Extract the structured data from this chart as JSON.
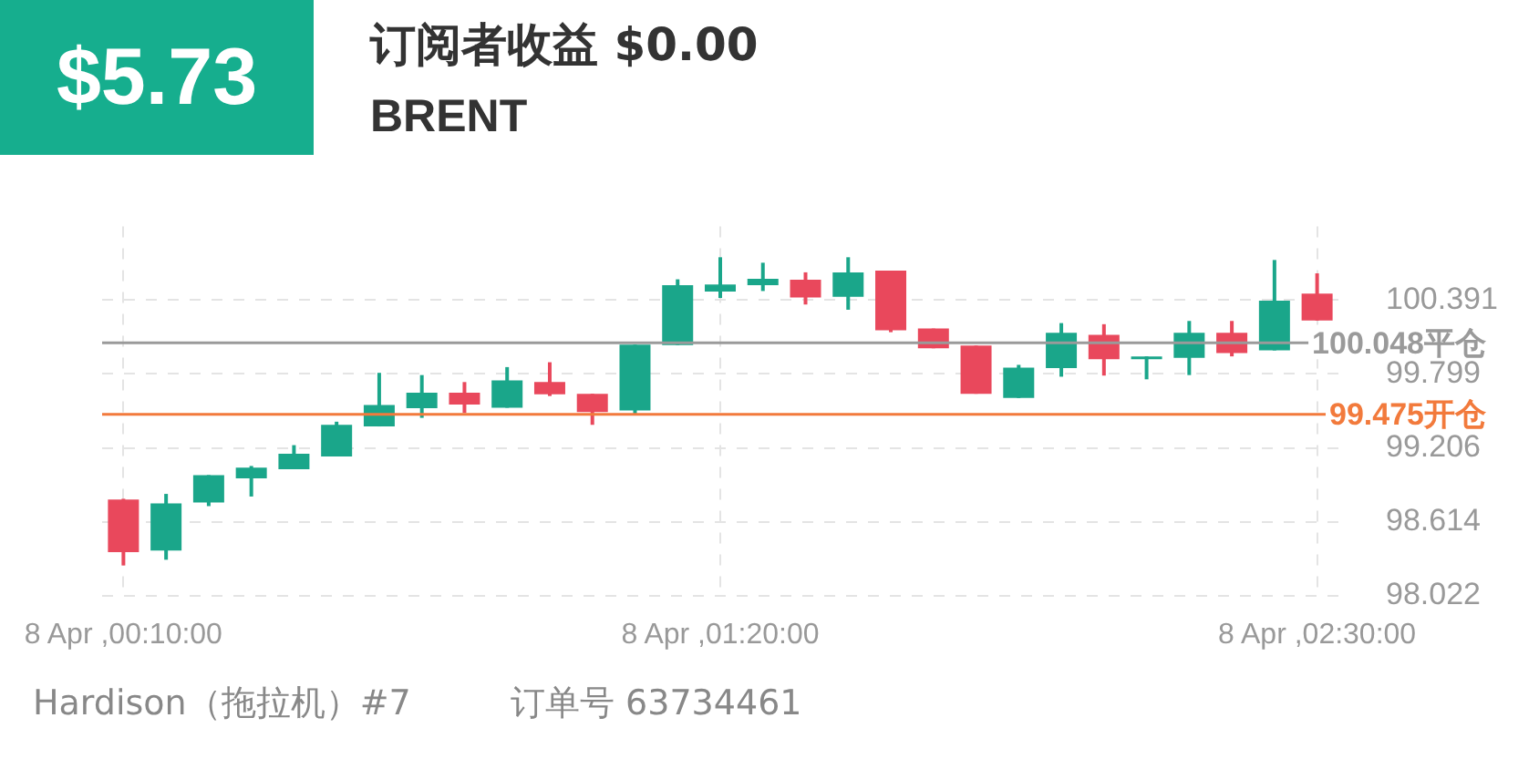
{
  "chart_data": {
    "type": "candlestick",
    "title": "订阅者收益 $0.00",
    "subtitle": "BRENT",
    "annotations": [
      "$5.73",
      "Hardison（拖拉机）#7",
      "订单号 63734461"
    ],
    "categories": [
      "8 Apr ,00:10:00",
      null,
      null,
      null,
      null,
      null,
      null,
      null,
      null,
      null,
      null,
      null,
      null,
      null,
      "8 Apr ,01:20:00",
      null,
      null,
      null,
      null,
      null,
      null,
      null,
      null,
      null,
      null,
      null,
      null,
      null,
      "8 Apr ,02:30:00"
    ],
    "ohlc": [
      [
        98.791,
        98.798,
        98.263,
        98.37
      ],
      [
        98.383,
        98.837,
        98.309,
        98.76
      ],
      [
        98.769,
        98.988,
        98.739,
        98.988
      ],
      [
        98.962,
        99.061,
        98.816,
        99.048
      ],
      [
        99.035,
        99.228,
        99.035,
        99.159
      ],
      [
        99.138,
        99.416,
        99.138,
        99.391
      ],
      [
        99.378,
        99.808,
        99.378,
        99.55
      ],
      [
        99.525,
        99.79,
        99.447,
        99.648
      ],
      [
        99.648,
        99.734,
        99.486,
        99.554
      ],
      [
        99.528,
        99.854,
        99.528,
        99.747
      ],
      [
        99.734,
        99.893,
        99.622,
        99.635
      ],
      [
        99.64,
        99.64,
        99.391,
        99.494
      ],
      [
        99.507,
        100.034,
        99.477,
        100.034
      ],
      [
        100.031,
        100.558,
        100.031,
        100.511
      ],
      [
        100.459,
        100.735,
        100.408,
        100.516
      ],
      [
        100.511,
        100.691,
        100.464,
        100.562
      ],
      [
        100.555,
        100.614,
        100.356,
        100.413
      ],
      [
        100.417,
        100.735,
        100.314,
        100.614
      ],
      [
        100.627,
        100.627,
        100.134,
        100.15
      ],
      [
        100.163,
        100.163,
        100.005,
        100.005
      ],
      [
        100.027,
        100.027,
        99.64,
        99.64
      ],
      [
        99.606,
        99.872,
        99.606,
        99.85
      ],
      [
        99.846,
        100.207,
        99.777,
        100.13
      ],
      [
        100.112,
        100.198,
        99.786,
        99.918
      ],
      [
        99.918,
        99.94,
        99.756,
        99.94
      ],
      [
        99.928,
        100.224,
        99.79,
        100.13
      ],
      [
        100.13,
        100.224,
        99.94,
        99.966
      ],
      [
        99.988,
        100.713,
        99.988,
        100.387
      ],
      [
        100.443,
        100.606,
        100.227,
        100.227
      ]
    ],
    "colors": [
      "#e9485c",
      "#1aa68a",
      "#1aa68a",
      "#1aa68a",
      "#1aa68a",
      "#1aa68a",
      "#1aa68a",
      "#1aa68a",
      "#e9485c",
      "#1aa68a",
      "#e9485c",
      "#e9485c",
      "#1aa68a",
      "#1aa68a",
      "#1aa68a",
      "#1aa68a",
      "#e9485c",
      "#1aa68a",
      "#e9485c",
      "#e9485c",
      "#e9485c",
      "#1aa68a",
      "#1aa68a",
      "#e9485c",
      "#1aa68a",
      "#1aa68a",
      "#e9485c",
      "#1aa68a",
      "#e9485c"
    ],
    "ylim": [
      98.022,
      100.983
    ],
    "yticks": [
      98.022,
      98.614,
      99.206,
      99.799,
      100.391
    ],
    "ref_lines": [
      {
        "axis": "y",
        "value": 100.048,
        "label": "100.048平仓",
        "color": "#9a9a9a"
      },
      {
        "axis": "y",
        "value": 99.475,
        "label": "99.475开仓",
        "color": "#f27a3c"
      }
    ],
    "grid": true
  }
}
